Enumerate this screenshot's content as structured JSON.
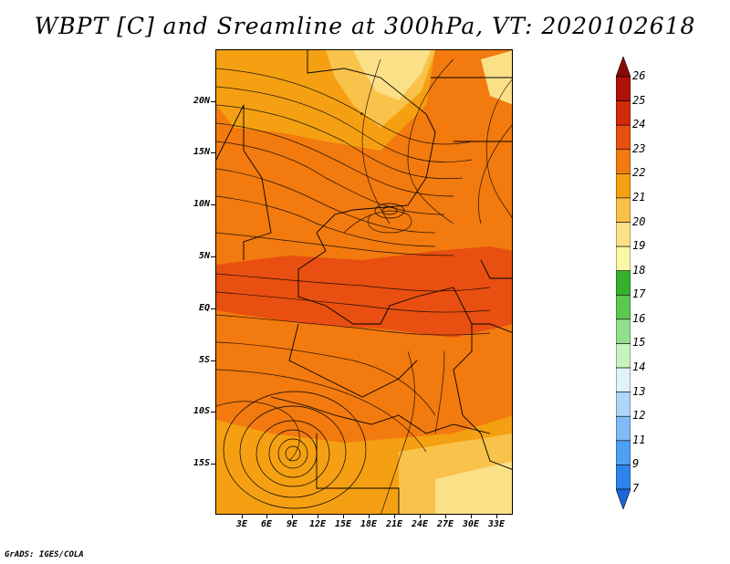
{
  "title": "WBPT [C] and Sreamline at 300hPa, VT: 2020102618",
  "credit": "GrADS: IGES/COLA",
  "lat_labels": [
    "20N",
    "15N",
    "10N",
    "5N",
    "EQ",
    "5S",
    "10S",
    "15S"
  ],
  "lon_labels": [
    "3E",
    "6E",
    "9E",
    "12E",
    "15E",
    "18E",
    "21E",
    "24E",
    "27E",
    "30E",
    "33E"
  ],
  "colorbar": {
    "labels": [
      "7",
      "9",
      "11",
      "12",
      "13",
      "14",
      "15",
      "16",
      "17",
      "18",
      "19",
      "20",
      "21",
      "22",
      "23",
      "24",
      "25",
      "26"
    ],
    "colors": [
      "#1c65d6",
      "#2f83ee",
      "#4ea0f5",
      "#7fbcf7",
      "#aed6f9",
      "#dff1fb",
      "#c8f2bf",
      "#92e08b",
      "#5cc84f",
      "#36b02e",
      "#fbf7a6",
      "#fbe088",
      "#f9c24a",
      "#f5a012",
      "#f27a0e",
      "#e84f10",
      "#d42a0a",
      "#b01208",
      "#8a0a06"
    ]
  }
}
